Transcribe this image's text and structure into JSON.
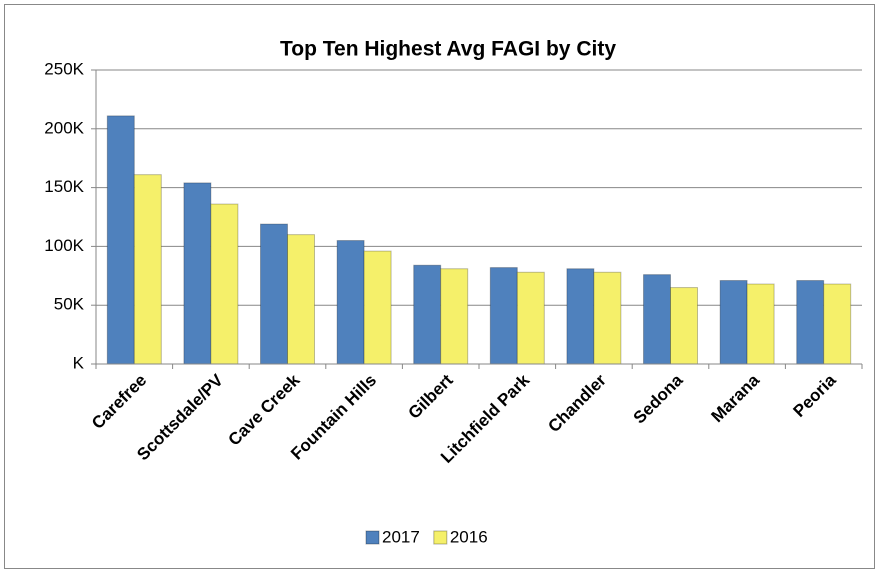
{
  "chart_data": {
    "type": "bar",
    "title": "Top Ten Highest Avg FAGI by City",
    "categories": [
      "Carefree",
      "Scottsdale/PV",
      "Cave Creek",
      "Fountain Hills",
      "Gilbert",
      "Litchfield Park",
      "Chandler",
      "Sedona",
      "Marana",
      "Peoria"
    ],
    "series": [
      {
        "name": "2017",
        "color": "#4f81bd",
        "values": [
          211000,
          154000,
          119000,
          105000,
          84000,
          82000,
          81000,
          76000,
          71000,
          71000
        ]
      },
      {
        "name": "2016",
        "color": "#f5f06a",
        "values": [
          161000,
          136000,
          110000,
          96000,
          81000,
          78000,
          78000,
          65000,
          68000,
          68000
        ]
      }
    ],
    "ylim": [
      0,
      250000
    ],
    "yticks": [
      {
        "value": 0,
        "label": "K"
      },
      {
        "value": 50000,
        "label": "50K"
      },
      {
        "value": 100000,
        "label": "100K"
      },
      {
        "value": 150000,
        "label": "150K"
      },
      {
        "value": 200000,
        "label": "200K"
      },
      {
        "value": 250000,
        "label": "250K"
      }
    ],
    "grid": true,
    "legend": "bottom"
  }
}
